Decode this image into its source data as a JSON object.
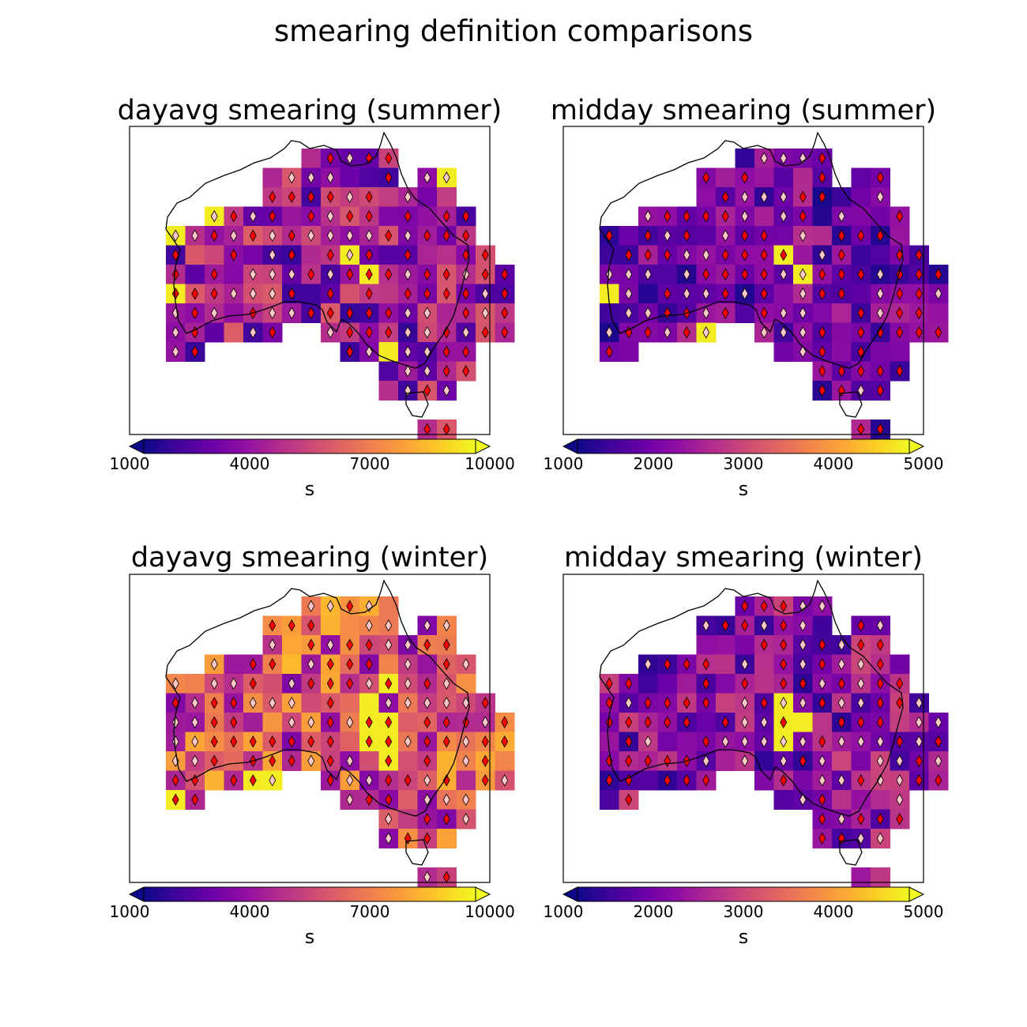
{
  "title": "smearing definition comparisons",
  "colormap": [
    "#0d0887",
    "#41049d",
    "#6a00a8",
    "#8f0da4",
    "#b12a90",
    "#cc4778",
    "#e16462",
    "#f2844b",
    "#fca636",
    "#fcce25",
    "#f0f921"
  ],
  "marker_colors": {
    "red": "#ff0000",
    "pink": "#ffc8c8"
  },
  "coastline_color": "#000000",
  "chart_data": [
    {
      "type": "heatmap",
      "title": "dayavg smearing (summer)",
      "colorbar": {
        "ticks": [
          "1000",
          "4000",
          "7000",
          "10000"
        ],
        "min": 1000,
        "max": 10000,
        "label": "s",
        "extend": "both"
      }
    },
    {
      "type": "heatmap",
      "title": "midday smearing (summer)",
      "colorbar": {
        "ticks": [
          "1000",
          "2000",
          "3000",
          "4000",
          "5000"
        ],
        "min": 1000,
        "max": 5000,
        "label": "s",
        "extend": "both"
      }
    },
    {
      "type": "heatmap",
      "title": "dayavg smearing (winter)",
      "colorbar": {
        "ticks": [
          "1000",
          "4000",
          "7000",
          "10000"
        ],
        "min": 1000,
        "max": 10000,
        "label": "s",
        "extend": "both"
      }
    },
    {
      "type": "heatmap",
      "title": "midday smearing (winter)",
      "colorbar": {
        "ticks": [
          "1000",
          "2000",
          "3000",
          "4000",
          "5000"
        ],
        "min": 1000,
        "max": 5000,
        "label": "s",
        "extend": "both"
      }
    }
  ]
}
